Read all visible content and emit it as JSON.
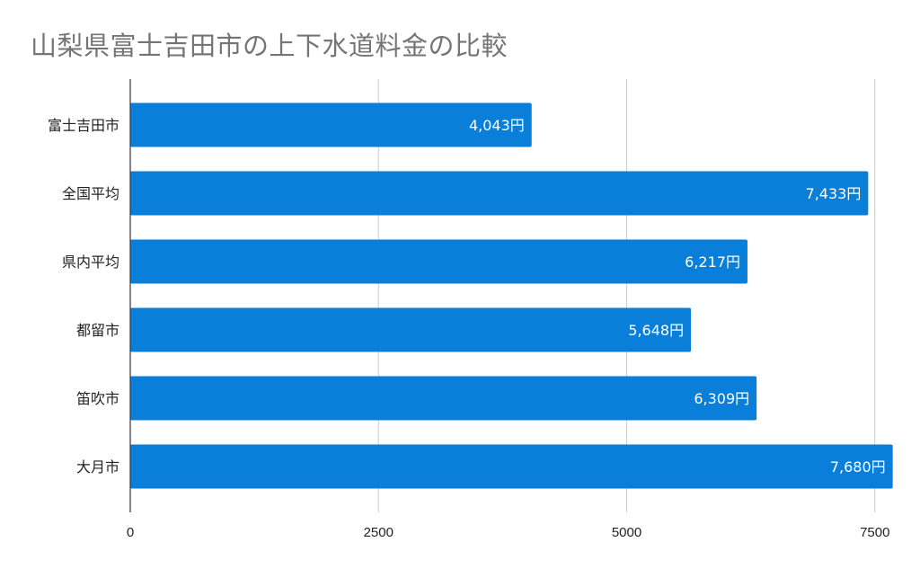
{
  "chart_data": {
    "type": "bar",
    "orientation": "horizontal",
    "title": "山梨県富士吉田市の上下水道料金の比較",
    "xlabel": "",
    "ylabel": "",
    "categories": [
      "富士吉田市",
      "全国平均",
      "県内平均",
      "都留市",
      "笛吹市",
      "大月市"
    ],
    "values": [
      4043,
      7433,
      6217,
      5648,
      6309,
      7680
    ],
    "data_labels": [
      "4,043円",
      "7,433円",
      "6,217円",
      "5,648円",
      "6,309円",
      "7,680円"
    ],
    "xlim": [
      0,
      7700
    ],
    "x_ticks": [
      0,
      2500,
      5000,
      7500
    ],
    "x_tick_labels": [
      "0",
      "2500",
      "5000",
      "7500"
    ],
    "grid": true,
    "legend": "none",
    "bar_color": "#0a7fd9",
    "title_color": "#757575"
  }
}
